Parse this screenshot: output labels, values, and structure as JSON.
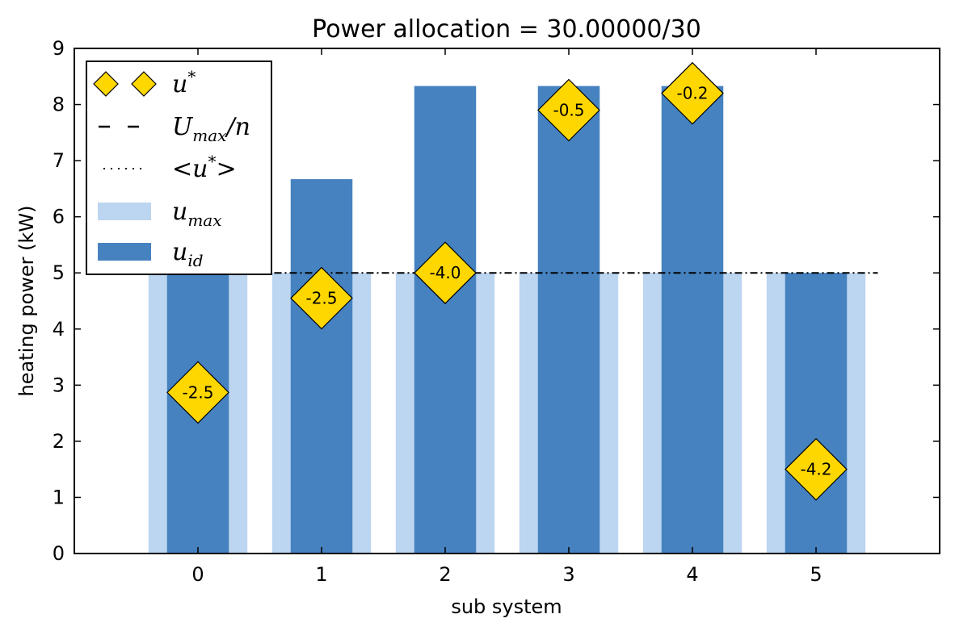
{
  "chart_data": {
    "type": "bar",
    "title": "Power allocation = 30.00000/30",
    "xlabel": "sub system",
    "ylabel": "heating power (kW)",
    "categories": [
      "0",
      "1",
      "2",
      "3",
      "4",
      "5"
    ],
    "ylim": [
      0,
      9
    ],
    "yticks": [
      "0",
      "1",
      "2",
      "3",
      "4",
      "5",
      "6",
      "7",
      "8",
      "9"
    ],
    "xlim": [
      -1,
      6
    ],
    "series": [
      {
        "name": "u_max",
        "legend": {
          "main": "u",
          "sub": "max"
        },
        "color": "#bcd5f0",
        "values": [
          5,
          5,
          5,
          5,
          5,
          5
        ]
      },
      {
        "name": "u_id",
        "legend": {
          "main": "u",
          "sub": "id"
        },
        "color": "#4682c0",
        "values": [
          5.0,
          6.67,
          8.33,
          8.33,
          8.33,
          5.0
        ]
      }
    ],
    "reference_line": {
      "name": "U_max/n",
      "legend": {
        "main": "U",
        "sub": "max",
        "tail": "/n"
      },
      "value": 5,
      "x_range": [
        -0.5,
        5.5
      ]
    },
    "mean_line": {
      "name": "<u*>",
      "legend": {
        "main": "<u",
        "sup": "*",
        "tail": ">"
      }
    },
    "markers": {
      "name": "u*",
      "legend": {
        "main": "u",
        "sup": "*"
      },
      "color": "#ffd700",
      "points": [
        {
          "x": 0,
          "y": 2.87,
          "label": "-2.5"
        },
        {
          "x": 1,
          "y": 4.55,
          "label": "-2.5"
        },
        {
          "x": 2,
          "y": 5.0,
          "label": "-4.0"
        },
        {
          "x": 3,
          "y": 7.9,
          "label": "-0.5"
        },
        {
          "x": 4,
          "y": 8.2,
          "label": "-0.2"
        },
        {
          "x": 5,
          "y": 1.5,
          "label": "-4.2"
        }
      ]
    },
    "grid": false,
    "legend_position": "top-left"
  }
}
